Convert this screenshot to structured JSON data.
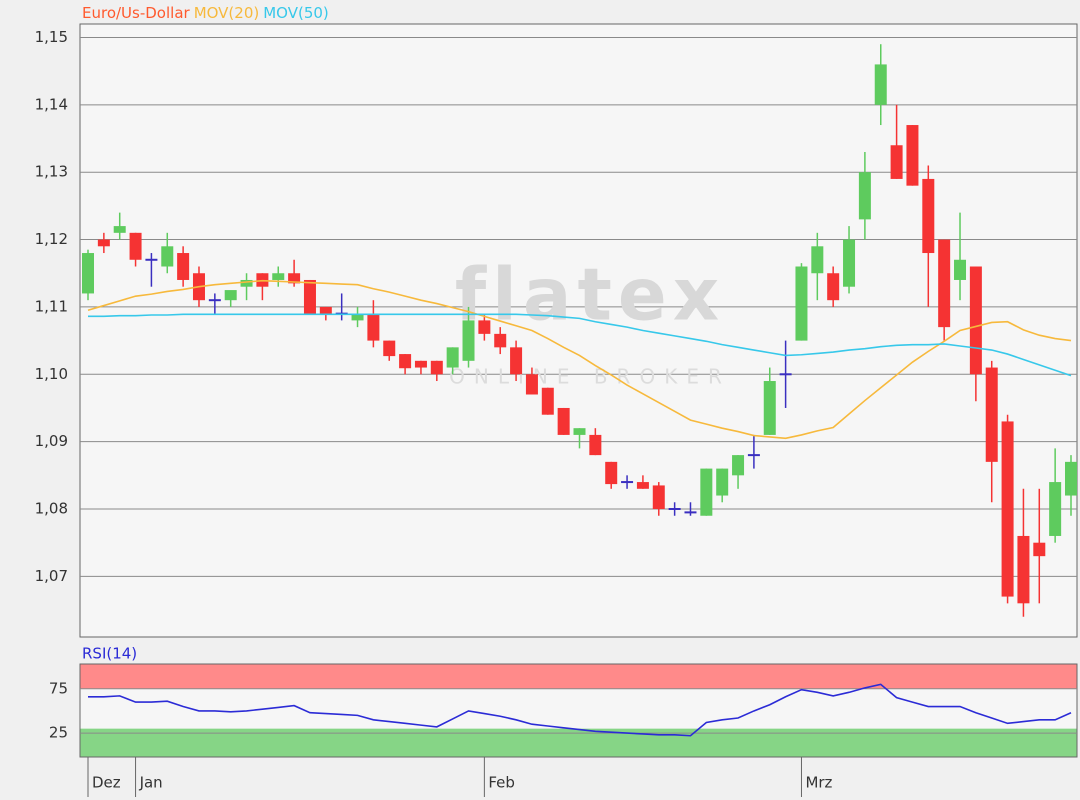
{
  "chart_data": [
    {
      "type": "candlestick",
      "watermark": "flatex",
      "watermark_tagline": "ONLINE BROKER",
      "ylim": [
        1.061,
        1.152
      ],
      "yticks": [
        {
          "value": 1.07,
          "label": "1,07"
        },
        {
          "value": 1.08,
          "label": "1,08"
        },
        {
          "value": 1.09,
          "label": "1,09"
        },
        {
          "value": 1.1,
          "label": "1,10"
        },
        {
          "value": 1.11,
          "label": "1,11"
        },
        {
          "value": 1.12,
          "label": "1,12"
        },
        {
          "value": 1.13,
          "label": "1,13"
        },
        {
          "value": 1.14,
          "label": "1,14"
        },
        {
          "value": 1.15,
          "label": "1,15"
        }
      ],
      "grid": true,
      "series": [
        {
          "name": "Euro/Us-Dollar",
          "color": "#ff5a2e",
          "up_color": "#5ecb5e",
          "down_color": "#f53333",
          "doji_color": "#3a2fc0",
          "open": [
            1.112,
            1.12,
            1.121,
            1.121,
            1.117,
            1.116,
            1.118,
            1.115,
            1.111,
            1.111,
            1.113,
            1.115,
            1.114,
            1.115,
            1.114,
            1.11,
            1.109,
            1.108,
            1.109,
            1.105,
            1.103,
            1.102,
            1.102,
            1.101,
            1.102,
            1.108,
            1.106,
            1.104,
            1.1,
            1.098,
            1.095,
            1.091,
            1.091,
            1.087,
            1.084,
            1.084,
            1.0835,
            1.08,
            1.0795,
            1.079,
            1.082,
            1.085,
            1.088,
            1.091,
            1.1,
            1.105,
            1.115,
            1.115,
            1.113,
            1.123,
            1.14,
            1.134,
            1.137,
            1.129,
            1.12,
            1.114,
            1.116,
            1.101,
            1.093,
            1.076,
            1.075,
            1.076,
            1.082
          ],
          "high": [
            1.1185,
            1.121,
            1.124,
            1.121,
            1.118,
            1.121,
            1.119,
            1.116,
            1.112,
            1.112,
            1.115,
            1.115,
            1.116,
            1.117,
            1.114,
            1.11,
            1.112,
            1.11,
            1.111,
            1.105,
            1.103,
            1.102,
            1.102,
            1.104,
            1.11,
            1.109,
            1.107,
            1.105,
            1.101,
            1.098,
            1.095,
            1.092,
            1.092,
            1.087,
            1.085,
            1.085,
            1.084,
            1.081,
            1.081,
            1.086,
            1.086,
            1.088,
            1.091,
            1.101,
            1.105,
            1.1165,
            1.121,
            1.116,
            1.122,
            1.133,
            1.149,
            1.14,
            1.137,
            1.131,
            1.12,
            1.124,
            1.116,
            1.102,
            1.094,
            1.083,
            1.083,
            1.089,
            1.088
          ],
          "low": [
            1.111,
            1.118,
            1.12,
            1.116,
            1.113,
            1.115,
            1.113,
            1.11,
            1.109,
            1.11,
            1.111,
            1.111,
            1.113,
            1.113,
            1.109,
            1.108,
            1.108,
            1.107,
            1.104,
            1.102,
            1.1,
            1.1,
            1.099,
            1.1,
            1.101,
            1.105,
            1.103,
            1.099,
            1.097,
            1.094,
            1.091,
            1.089,
            1.088,
            1.083,
            1.083,
            1.083,
            1.079,
            1.079,
            1.079,
            1.079,
            1.081,
            1.083,
            1.086,
            1.091,
            1.095,
            1.105,
            1.111,
            1.11,
            1.112,
            1.12,
            1.137,
            1.129,
            1.128,
            1.11,
            1.105,
            1.111,
            1.096,
            1.081,
            1.066,
            1.064,
            1.066,
            1.075,
            1.079
          ],
          "close": [
            1.118,
            1.119,
            1.122,
            1.117,
            1.117,
            1.119,
            1.114,
            1.111,
            1.111,
            1.1125,
            1.114,
            1.113,
            1.115,
            1.1135,
            1.109,
            1.109,
            1.109,
            1.109,
            1.105,
            1.1027,
            1.1009,
            1.101,
            1.1,
            1.104,
            1.108,
            1.106,
            1.104,
            1.1,
            1.097,
            1.094,
            1.091,
            1.092,
            1.088,
            1.0837,
            1.084,
            1.083,
            1.08,
            1.08,
            1.0795,
            1.086,
            1.086,
            1.088,
            1.088,
            1.099,
            1.1,
            1.116,
            1.119,
            1.111,
            1.12,
            1.13,
            1.146,
            1.129,
            1.128,
            1.118,
            1.107,
            1.117,
            1.1,
            1.087,
            1.067,
            1.066,
            1.073,
            1.084,
            1.087
          ]
        },
        {
          "name": "MOV(20)",
          "color": "#f7b93c",
          "values": [
            1.1095,
            1.1102,
            1.1109,
            1.1116,
            1.1119,
            1.1123,
            1.1126,
            1.113,
            1.1133,
            1.1135,
            1.1137,
            1.1139,
            1.1138,
            1.1137,
            1.1136,
            1.1135,
            1.1134,
            1.1133,
            1.1127,
            1.1122,
            1.1116,
            1.111,
            1.1105,
            1.1099,
            1.1093,
            1.1086,
            1.1079,
            1.1072,
            1.1065,
            1.1053,
            1.104,
            1.1028,
            1.1013,
            1.0999,
            1.0984,
            1.0971,
            1.0958,
            1.0945,
            1.0932,
            1.0926,
            1.092,
            1.0915,
            1.0909,
            1.0907,
            1.0905,
            1.091,
            1.0916,
            1.0921,
            1.0941,
            1.0961,
            1.098,
            1.0999,
            1.1018,
            1.1034,
            1.1049,
            1.1065,
            1.1071,
            1.1077,
            1.1078,
            1.1066,
            1.1058,
            1.1053,
            1.105
          ]
        },
        {
          "name": "MOV(50)",
          "color": "#37c8ea",
          "values": [
            1.1086,
            1.1086,
            1.1087,
            1.1087,
            1.1088,
            1.1088,
            1.1089,
            1.1089,
            1.1089,
            1.1089,
            1.1089,
            1.1089,
            1.1089,
            1.1089,
            1.1089,
            1.1089,
            1.1089,
            1.1089,
            1.1089,
            1.1089,
            1.1089,
            1.1089,
            1.1089,
            1.1089,
            1.1089,
            1.1089,
            1.1089,
            1.1089,
            1.1088,
            1.1087,
            1.1085,
            1.1083,
            1.1078,
            1.1074,
            1.107,
            1.1065,
            1.1061,
            1.1057,
            1.1053,
            1.1049,
            1.1044,
            1.104,
            1.1036,
            1.1032,
            1.1028,
            1.1029,
            1.1031,
            1.1033,
            1.1036,
            1.1038,
            1.1041,
            1.1043,
            1.1044,
            1.1044,
            1.1045,
            1.1042,
            1.1039,
            1.1036,
            1.103,
            1.1022,
            1.1014,
            1.1006,
            1.0998
          ]
        }
      ]
    },
    {
      "type": "line",
      "categories": [
        "Dez",
        null,
        null,
        "Jan",
        null,
        null,
        null,
        null,
        null,
        null,
        null,
        null,
        null,
        null,
        null,
        null,
        null,
        null,
        null,
        null,
        null,
        null,
        null,
        null,
        null,
        "Feb",
        null,
        null,
        null,
        null,
        null,
        null,
        null,
        null,
        null,
        null,
        null,
        null,
        null,
        null,
        null,
        null,
        null,
        null,
        null,
        "Mrz",
        null,
        null,
        null,
        null,
        null,
        null,
        null,
        null,
        null,
        null,
        null,
        null,
        null,
        null,
        null,
        null,
        null
      ],
      "ylim": [
        -2,
        103
      ],
      "yticks": [
        25,
        75
      ],
      "zones": [
        {
          "above": 75,
          "color": "#ff8a8a"
        },
        {
          "below": 30,
          "color": "#86d586"
        }
      ],
      "series": [
        {
          "name": "RSI(14)",
          "color": "#2b2bd6",
          "values": [
            66,
            66,
            67,
            60,
            60,
            61,
            55,
            50,
            50,
            49,
            50,
            52,
            54,
            56,
            48,
            47,
            46,
            45,
            40,
            38,
            36,
            34,
            32,
            41,
            50,
            47,
            44,
            40,
            35,
            33,
            31,
            29,
            27,
            26,
            25,
            24,
            23,
            23,
            22,
            37,
            40,
            42,
            50,
            57,
            66,
            74,
            71,
            67,
            71,
            76,
            80,
            65,
            60,
            55,
            55,
            55,
            48,
            42,
            36,
            38,
            40,
            40,
            48
          ]
        }
      ]
    }
  ]
}
